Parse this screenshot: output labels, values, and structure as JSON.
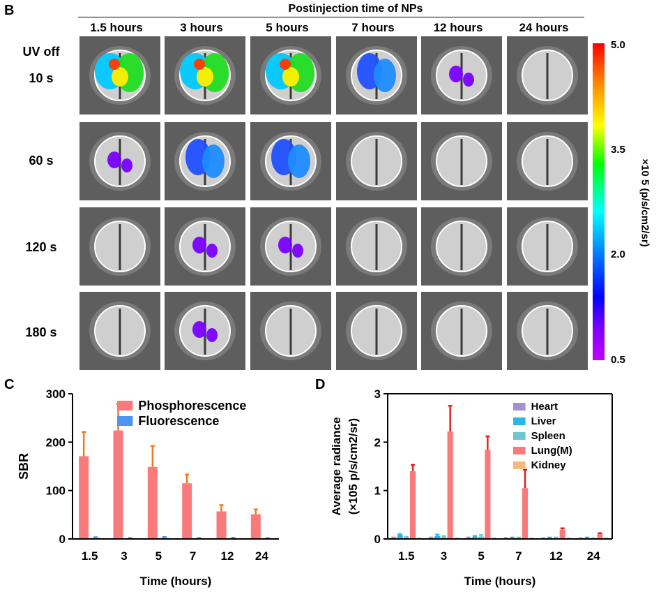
{
  "panels": {
    "b": "B",
    "c": "C",
    "d": "D"
  },
  "image_grid": {
    "title": "Postinjection time of NPs",
    "columns": [
      "1.5 hours",
      "3 hours",
      "5 hours",
      "7 hours",
      "12 hours",
      "24 hours"
    ],
    "rows": [
      {
        "label_top": "UV off",
        "label": "10 s"
      },
      {
        "label": "60 s"
      },
      {
        "label": "120 s"
      },
      {
        "label": "180 s"
      }
    ]
  },
  "colorbar": {
    "ticks": [
      "5.0",
      "3.5",
      "2.0",
      "0.5"
    ],
    "unit_label": "×10 5 (p/s/cm2/sr)",
    "colors": [
      "#ff0000",
      "#ff8c00",
      "#ffff00",
      "#00ff00",
      "#00ffff",
      "#0080ff",
      "#0000ff",
      "#8000ff",
      "#c000ff"
    ]
  },
  "chart_data": [
    {
      "type": "bar",
      "categories": [
        "1.5",
        "3",
        "5",
        "7",
        "12",
        "24"
      ],
      "series": [
        {
          "name": "Phosphorescence",
          "values": [
            171,
            224,
            149,
            115,
            57,
            51
          ],
          "errors": [
            50,
            55,
            43,
            18,
            13,
            10
          ],
          "color": "#f87a7a"
        },
        {
          "name": "Fluorescence",
          "values": [
            2,
            1.5,
            2,
            1.5,
            1.5,
            1.5
          ],
          "errors": [
            1.5,
            0.5,
            2,
            0.5,
            1,
            0.5
          ],
          "color": "#4a96f0"
        }
      ],
      "xlabel": "Time (hours)",
      "ylabel": "SBR",
      "ylim": [
        0,
        300
      ],
      "yticks": [
        "0",
        "100",
        "200",
        "300"
      ],
      "legend": "top-right"
    },
    {
      "type": "bar",
      "categories": [
        "1.5",
        "3",
        "5",
        "7",
        "12",
        "24"
      ],
      "series": [
        {
          "name": "Heart",
          "values": [
            0.02,
            0.02,
            0.02,
            0.01,
            0.01,
            0.01
          ],
          "errors": [
            0.01,
            0.01,
            0.01,
            0.01,
            0.005,
            0.005
          ],
          "color": "#a58fd6"
        },
        {
          "name": "Liver",
          "values": [
            0.08,
            0.06,
            0.04,
            0.02,
            0.02,
            0.02
          ],
          "errors": [
            0.02,
            0.03,
            0.02,
            0.01,
            0.01,
            0.01
          ],
          "color": "#27b8e8"
        },
        {
          "name": "Spleen",
          "values": [
            0.03,
            0.04,
            0.05,
            0.02,
            0.02,
            0.01
          ],
          "errors": [
            0.01,
            0.02,
            0.03,
            0.01,
            0.01,
            0.005
          ],
          "color": "#6ec6cf"
        },
        {
          "name": "Lung(M)",
          "values": [
            1.4,
            2.22,
            1.84,
            1.05,
            0.19,
            0.1
          ],
          "errors": [
            0.13,
            0.53,
            0.28,
            0.38,
            0.03,
            0.02
          ],
          "color": "#f87a7a"
        },
        {
          "name": "Kidney",
          "values": [
            0.01,
            0.01,
            0.01,
            0.01,
            0.01,
            0.01
          ],
          "errors": [
            0.005,
            0.005,
            0.005,
            0.005,
            0.005,
            0.005
          ],
          "color": "#f9b97b"
        }
      ],
      "xlabel": "Time (hours)",
      "ylabel_line1": "Average radiance",
      "ylabel_line2": "(×105 p/s/cm2/sr)",
      "ylim": [
        0,
        3
      ],
      "yticks": [
        "0",
        "1",
        "2",
        "3"
      ],
      "legend": "top-right"
    }
  ]
}
